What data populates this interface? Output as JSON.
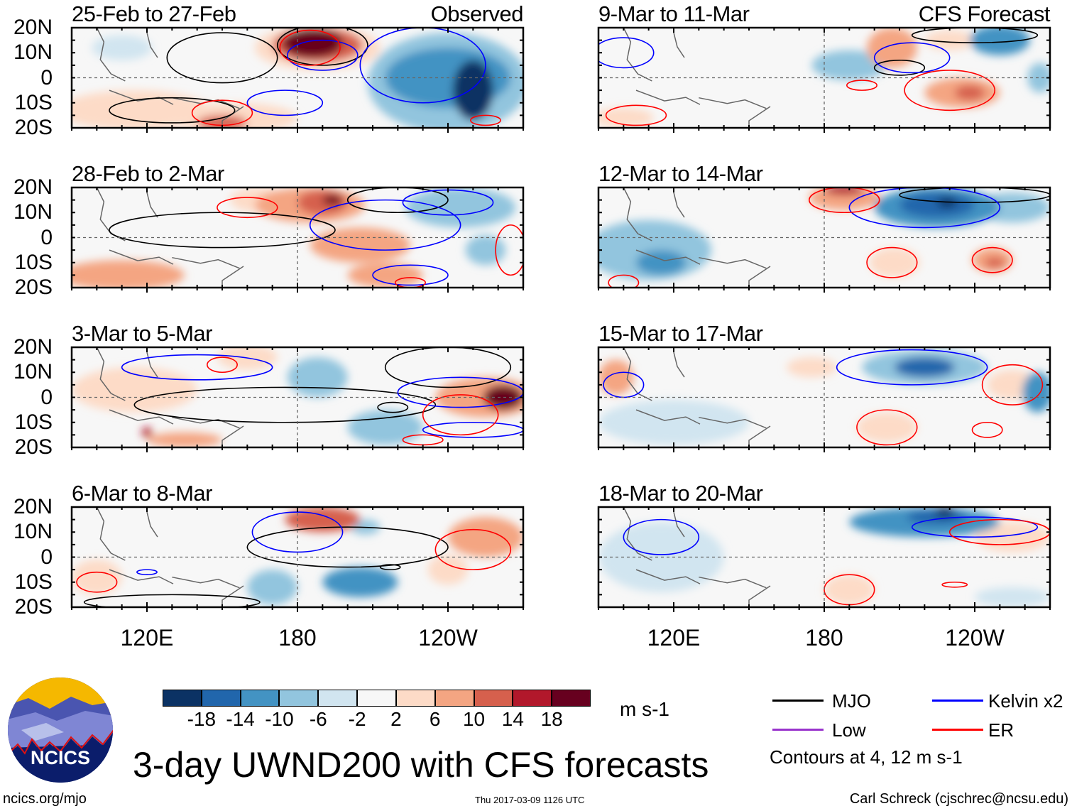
{
  "header": {
    "observed_label": "Observed",
    "forecast_label": "CFS Forecast"
  },
  "axes": {
    "lat_labels": [
      "20N",
      "10N",
      "0",
      "10S",
      "20S"
    ],
    "lat_values": [
      20,
      10,
      0,
      -10,
      -20
    ],
    "lon_labels": [
      "120E",
      "180",
      "120W"
    ],
    "lon_values": [
      120,
      180,
      240
    ],
    "lon_range": [
      90,
      270
    ],
    "lat_range": [
      -20,
      20
    ]
  },
  "colors": {
    "bins": [
      -18,
      -14,
      -10,
      -6,
      -2,
      2,
      6,
      10,
      14,
      18
    ],
    "palette": [
      "#0b3264",
      "#2166ac",
      "#4393c3",
      "#92c5de",
      "#d1e5f0",
      "#f7f7f7",
      "#fddbc7",
      "#f4a582",
      "#d6604d",
      "#b2182b",
      "#67001f"
    ],
    "mjo": "#000000",
    "kelvin": "#0000ff",
    "low": "#9933cc",
    "er": "#ff0000",
    "coast": "#666666"
  },
  "panels": [
    {
      "title": "25-Feb to 27-Feb",
      "column": "observed",
      "anomalies": [
        [
          240,
          -2,
          32,
          20,
          -8
        ],
        [
          240,
          0,
          25,
          12,
          -12
        ],
        [
          250,
          -5,
          8,
          12,
          -20
        ],
        [
          188,
          12,
          25,
          9,
          6
        ],
        [
          188,
          13,
          18,
          7,
          12
        ],
        [
          186,
          14,
          12,
          6,
          20
        ],
        [
          155,
          -16,
          25,
          6,
          6
        ],
        [
          150,
          -18,
          10,
          3,
          14
        ],
        [
          115,
          -13,
          30,
          8,
          4
        ],
        [
          110,
          12,
          12,
          5,
          -3
        ]
      ],
      "contours": [
        [
          "mjo",
          150,
          8,
          22,
          10
        ],
        [
          "mjo",
          190,
          13,
          18,
          8
        ],
        [
          "mjo",
          130,
          -13,
          25,
          5
        ],
        [
          "kelvin",
          190,
          9,
          14,
          6
        ],
        [
          "kelvin",
          175,
          -10,
          15,
          5
        ],
        [
          "kelvin",
          230,
          5,
          25,
          15
        ],
        [
          "er",
          185,
          12,
          12,
          7
        ],
        [
          "er",
          150,
          -14,
          12,
          5
        ],
        [
          "er",
          255,
          -17,
          6,
          2
        ]
      ]
    },
    {
      "title": "28-Feb to 2-Mar",
      "column": "observed",
      "anomalies": [
        [
          185,
          13,
          22,
          7,
          8
        ],
        [
          190,
          14,
          10,
          5,
          14
        ],
        [
          194,
          15,
          4,
          2,
          20
        ],
        [
          205,
          -3,
          20,
          7,
          8
        ],
        [
          110,
          -15,
          25,
          6,
          8
        ],
        [
          215,
          -15,
          15,
          5,
          8
        ],
        [
          245,
          12,
          22,
          8,
          -6
        ],
        [
          255,
          -5,
          8,
          6,
          -8
        ],
        [
          165,
          15,
          12,
          5,
          4
        ]
      ],
      "contours": [
        [
          "mjo",
          150,
          3,
          45,
          7
        ],
        [
          "mjo",
          220,
          15,
          20,
          5
        ],
        [
          "kelvin",
          215,
          5,
          30,
          10
        ],
        [
          "kelvin",
          240,
          14,
          18,
          5
        ],
        [
          "kelvin",
          225,
          -15,
          15,
          4
        ],
        [
          "er",
          160,
          12,
          12,
          4
        ],
        [
          "er",
          265,
          -5,
          6,
          10
        ],
        [
          "er",
          225,
          -18,
          6,
          2
        ]
      ]
    },
    {
      "title": "3-Mar to 5-Mar",
      "column": "observed",
      "anomalies": [
        [
          255,
          0,
          20,
          8,
          10
        ],
        [
          262,
          0,
          8,
          5,
          20
        ],
        [
          115,
          3,
          25,
          9,
          5
        ],
        [
          188,
          8,
          12,
          8,
          -6
        ],
        [
          215,
          -12,
          15,
          7,
          -6
        ],
        [
          160,
          16,
          12,
          5,
          4
        ],
        [
          135,
          -17,
          15,
          3,
          8
        ],
        [
          120,
          -14,
          2,
          2,
          18
        ]
      ],
      "contours": [
        [
          "mjo",
          175,
          -3,
          60,
          7
        ],
        [
          "mjo",
          240,
          12,
          25,
          8
        ],
        [
          "mjo",
          218,
          -4,
          6,
          2
        ],
        [
          "kelvin",
          140,
          12,
          30,
          5
        ],
        [
          "kelvin",
          245,
          2,
          25,
          6
        ],
        [
          "kelvin",
          250,
          -13,
          20,
          3
        ],
        [
          "er",
          150,
          13,
          6,
          3
        ],
        [
          "er",
          245,
          -7,
          15,
          8
        ],
        [
          "er",
          230,
          -17,
          8,
          2
        ]
      ]
    },
    {
      "title": "6-Mar to 8-Mar",
      "column": "observed",
      "anomalies": [
        [
          190,
          15,
          15,
          5,
          12
        ],
        [
          255,
          8,
          15,
          8,
          8
        ],
        [
          205,
          -10,
          15,
          6,
          -10
        ],
        [
          170,
          -12,
          10,
          7,
          -6
        ],
        [
          100,
          -8,
          10,
          7,
          6
        ],
        [
          207,
          12,
          6,
          3,
          -6
        ],
        [
          240,
          -5,
          8,
          6,
          4
        ]
      ],
      "contours": [
        [
          "mjo",
          200,
          4,
          40,
          8
        ],
        [
          "mjo",
          130,
          -18,
          35,
          3
        ],
        [
          "mjo",
          217,
          -4,
          4,
          1
        ],
        [
          "kelvin",
          180,
          10,
          18,
          8
        ],
        [
          "kelvin",
          120,
          -6,
          4,
          1
        ],
        [
          "er",
          250,
          3,
          15,
          8
        ],
        [
          "er",
          100,
          -10,
          8,
          4
        ]
      ]
    },
    {
      "title": "9-Mar to 11-Mar",
      "column": "forecast",
      "anomalies": [
        [
          207,
          12,
          10,
          8,
          8
        ],
        [
          235,
          -6,
          15,
          6,
          10
        ],
        [
          238,
          -6,
          6,
          3,
          14
        ],
        [
          190,
          5,
          15,
          6,
          -6
        ],
        [
          250,
          15,
          12,
          6,
          -10
        ],
        [
          266,
          0,
          5,
          6,
          -8
        ],
        [
          100,
          -16,
          12,
          4,
          6
        ],
        [
          230,
          15,
          10,
          4,
          4
        ]
      ],
      "contours": [
        [
          "mjo",
          210,
          4,
          10,
          3
        ],
        [
          "mjo",
          240,
          17,
          25,
          3
        ],
        [
          "kelvin",
          215,
          8,
          15,
          6
        ],
        [
          "kelvin",
          100,
          10,
          12,
          6
        ],
        [
          "er",
          230,
          -5,
          18,
          8
        ],
        [
          "er",
          195,
          -3,
          6,
          2
        ],
        [
          "er",
          105,
          -15,
          12,
          4
        ]
      ]
    },
    {
      "title": "12-Mar to 14-Mar",
      "column": "forecast",
      "anomalies": [
        [
          225,
          12,
          25,
          8,
          -10
        ],
        [
          225,
          13,
          15,
          5,
          -14
        ],
        [
          229,
          14,
          4,
          2,
          -20
        ],
        [
          110,
          -5,
          25,
          12,
          -6
        ],
        [
          115,
          -10,
          10,
          5,
          -12
        ],
        [
          188,
          16,
          14,
          5,
          10
        ],
        [
          188,
          19,
          8,
          2,
          16
        ],
        [
          208,
          -10,
          10,
          6,
          6
        ],
        [
          247,
          -9,
          8,
          5,
          8
        ],
        [
          248,
          -10,
          4,
          2,
          12
        ],
        [
          255,
          12,
          15,
          6,
          -6
        ]
      ],
      "contours": [
        [
          "mjo",
          240,
          17,
          30,
          3
        ],
        [
          "kelvin",
          220,
          12,
          30,
          8
        ],
        [
          "er",
          188,
          15,
          14,
          5
        ],
        [
          "er",
          207,
          -10,
          10,
          6
        ],
        [
          "er",
          247,
          -9,
          8,
          5
        ],
        [
          "er",
          100,
          -18,
          6,
          3
        ]
      ]
    },
    {
      "title": "15-Mar to 17-Mar",
      "column": "forecast",
      "anomalies": [
        [
          220,
          12,
          25,
          7,
          -8
        ],
        [
          220,
          12,
          12,
          4,
          -14
        ],
        [
          97,
          8,
          7,
          7,
          8
        ],
        [
          205,
          -12,
          12,
          6,
          6
        ],
        [
          120,
          -10,
          30,
          9,
          -5
        ],
        [
          265,
          2,
          6,
          8,
          -10
        ],
        [
          255,
          5,
          10,
          6,
          4
        ],
        [
          175,
          12,
          10,
          4,
          4
        ]
      ],
      "contours": [
        [
          "kelvin",
          215,
          12,
          30,
          7
        ],
        [
          "kelvin",
          100,
          5,
          8,
          5
        ],
        [
          "er",
          205,
          -12,
          12,
          7
        ],
        [
          "er",
          255,
          5,
          12,
          8
        ],
        [
          "er",
          245,
          -13,
          6,
          3
        ]
      ]
    },
    {
      "title": "18-Mar to 20-Mar",
      "column": "forecast",
      "anomalies": [
        [
          220,
          14,
          30,
          6,
          -10
        ],
        [
          225,
          16,
          12,
          3,
          -14
        ],
        [
          228,
          18,
          4,
          2,
          -20
        ],
        [
          115,
          0,
          25,
          14,
          -4
        ],
        [
          255,
          8,
          15,
          6,
          4
        ],
        [
          190,
          -13,
          10,
          6,
          4
        ],
        [
          255,
          -16,
          15,
          4,
          -5
        ]
      ],
      "contours": [
        [
          "kelvin",
          115,
          8,
          15,
          7
        ],
        [
          "kelvin",
          240,
          12,
          25,
          4
        ],
        [
          "er",
          250,
          10,
          20,
          5
        ],
        [
          "er",
          190,
          -13,
          10,
          6
        ],
        [
          "er",
          232,
          -11,
          5,
          1
        ]
      ]
    }
  ],
  "colorbar": {
    "labels": [
      "-18",
      "-14",
      "-10",
      "-6",
      "-2",
      "2",
      "6",
      "10",
      "14",
      "18"
    ],
    "units": "m s-1"
  },
  "legend": {
    "mjo": "MJO",
    "kelvin": "Kelvin x2",
    "low": "Low",
    "er": "ER",
    "note": "Contours at 4, 12 m s-1"
  },
  "title": "3-day UWND200 with CFS forecasts",
  "logo": {
    "text": "NCICS"
  },
  "footer": {
    "url": "ncics.org/mjo",
    "timestamp": "Thu 2017-03-09 1126 UTC",
    "credit": "Carl Schreck (cjschrec@ncsu.edu)"
  }
}
